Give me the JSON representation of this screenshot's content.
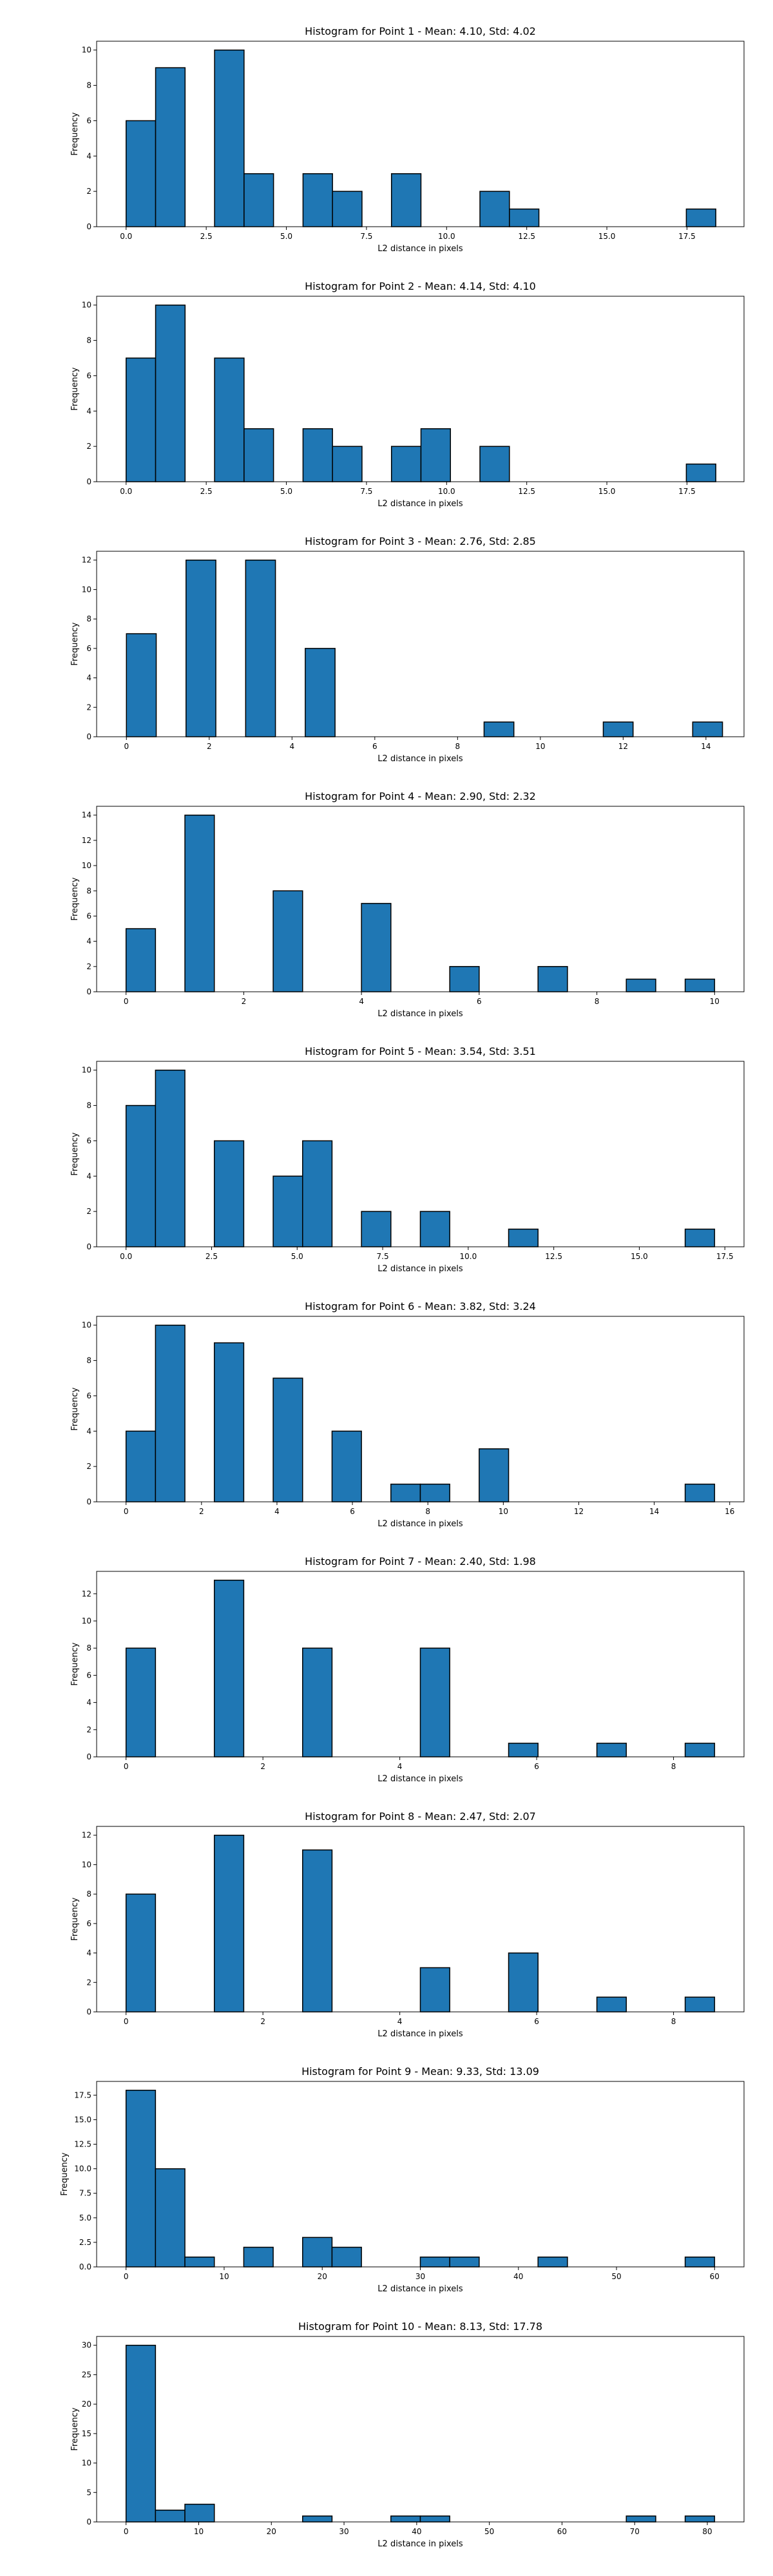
{
  "chart_data": [
    {
      "type": "bar",
      "title": "Histogram for Point 1 - Mean: 4.10, Std: 4.02",
      "xlabel": "L2 distance in pixels",
      "ylabel": "Frequency",
      "xlim": [
        -0.92,
        19.28
      ],
      "ylim": [
        0,
        10.5
      ],
      "xticks": [
        0.0,
        2.5,
        5.0,
        7.5,
        10.0,
        12.5,
        15.0,
        17.5
      ],
      "xtick_labels": [
        "0.0",
        "2.5",
        "5.0",
        "7.5",
        "10.0",
        "12.5",
        "15.0",
        "17.5"
      ],
      "yticks": [
        0,
        2,
        4,
        6,
        8,
        10
      ],
      "ytick_labels": [
        "0",
        "2",
        "4",
        "6",
        "8",
        "10"
      ],
      "bin_edges": [
        0.0,
        0.92,
        1.84,
        2.76,
        3.68,
        4.6,
        5.52,
        6.44,
        7.36,
        8.28,
        9.2,
        10.12,
        11.04,
        11.96,
        12.88,
        13.8,
        14.72,
        15.64,
        16.56,
        17.48,
        18.4
      ],
      "values": [
        6,
        9,
        0,
        10,
        3,
        0,
        3,
        2,
        0,
        3,
        0,
        0,
        2,
        1,
        0,
        0,
        0,
        0,
        0,
        1
      ]
    },
    {
      "type": "bar",
      "title": "Histogram for Point 2 - Mean: 4.14, Std: 4.10",
      "xlabel": "L2 distance in pixels",
      "ylabel": "Frequency",
      "xlim": [
        -0.92,
        19.28
      ],
      "ylim": [
        0,
        10.5
      ],
      "xticks": [
        0.0,
        2.5,
        5.0,
        7.5,
        10.0,
        12.5,
        15.0,
        17.5
      ],
      "xtick_labels": [
        "0.0",
        "2.5",
        "5.0",
        "7.5",
        "10.0",
        "12.5",
        "15.0",
        "17.5"
      ],
      "yticks": [
        0,
        2,
        4,
        6,
        8,
        10
      ],
      "ytick_labels": [
        "0",
        "2",
        "4",
        "6",
        "8",
        "10"
      ],
      "bin_edges": [
        0.0,
        0.92,
        1.84,
        2.76,
        3.68,
        4.6,
        5.52,
        6.44,
        7.36,
        8.28,
        9.2,
        10.12,
        11.04,
        11.96,
        12.88,
        13.8,
        14.72,
        15.64,
        16.56,
        17.48,
        18.4
      ],
      "values": [
        7,
        10,
        0,
        7,
        3,
        0,
        3,
        2,
        0,
        2,
        3,
        0,
        2,
        0,
        0,
        0,
        0,
        0,
        0,
        1
      ]
    },
    {
      "type": "bar",
      "title": "Histogram for Point 3 - Mean: 2.76, Std: 2.85",
      "xlabel": "L2 distance in pixels",
      "ylabel": "Frequency",
      "xlim": [
        -0.72,
        14.92
      ],
      "ylim": [
        0,
        12.6
      ],
      "xticks": [
        0,
        2,
        4,
        6,
        8,
        10,
        12,
        14
      ],
      "xtick_labels": [
        "0",
        "2",
        "4",
        "6",
        "8",
        "10",
        "12",
        "14"
      ],
      "yticks": [
        0,
        2,
        4,
        6,
        8,
        10,
        12
      ],
      "ytick_labels": [
        "0",
        "2",
        "4",
        "6",
        "8",
        "10",
        "12"
      ],
      "bin_edges": [
        0.0,
        0.72,
        1.44,
        2.16,
        2.88,
        3.6,
        4.32,
        5.04,
        5.76,
        6.48,
        7.2,
        7.92,
        8.64,
        9.36,
        10.08,
        10.8,
        11.52,
        12.24,
        12.96,
        13.68,
        14.4
      ],
      "values": [
        7,
        0,
        12,
        0,
        12,
        0,
        6,
        0,
        0,
        0,
        0,
        0,
        1,
        0,
        0,
        0,
        1,
        0,
        0,
        1
      ]
    },
    {
      "type": "bar",
      "title": "Histogram for Point 4 - Mean: 2.90, Std: 2.32",
      "xlabel": "L2 distance in pixels",
      "ylabel": "Frequency",
      "xlim": [
        -0.5,
        10.5
      ],
      "ylim": [
        0,
        14.7
      ],
      "xticks": [
        0,
        2,
        4,
        6,
        8,
        10
      ],
      "xtick_labels": [
        "0",
        "2",
        "4",
        "6",
        "8",
        "10"
      ],
      "yticks": [
        0,
        2,
        4,
        6,
        8,
        10,
        12,
        14
      ],
      "ytick_labels": [
        "0",
        "2",
        "4",
        "6",
        "8",
        "10",
        "12",
        "14"
      ],
      "bin_edges": [
        0.0,
        0.5,
        1.0,
        1.5,
        2.0,
        2.5,
        3.0,
        3.5,
        4.0,
        4.5,
        5.0,
        5.5,
        6.0,
        6.5,
        7.0,
        7.5,
        8.0,
        8.5,
        9.0,
        9.5,
        10.0
      ],
      "values": [
        5,
        0,
        14,
        0,
        0,
        8,
        0,
        0,
        7,
        0,
        0,
        2,
        0,
        0,
        2,
        0,
        0,
        1,
        0,
        1
      ]
    },
    {
      "type": "bar",
      "title": "Histogram for Point 5 - Mean: 3.54, Std: 3.51",
      "xlabel": "L2 distance in pixels",
      "ylabel": "Frequency",
      "xlim": [
        -0.86,
        18.06
      ],
      "ylim": [
        0,
        10.5
      ],
      "xticks": [
        0.0,
        2.5,
        5.0,
        7.5,
        10.0,
        12.5,
        15.0,
        17.5
      ],
      "xtick_labels": [
        "0.0",
        "2.5",
        "5.0",
        "7.5",
        "10.0",
        "12.5",
        "15.0",
        "17.5"
      ],
      "yticks": [
        0,
        2,
        4,
        6,
        8,
        10
      ],
      "ytick_labels": [
        "0",
        "2",
        "4",
        "6",
        "8",
        "10"
      ],
      "bin_edges": [
        0.0,
        0.86,
        1.72,
        2.58,
        3.44,
        4.3,
        5.16,
        6.02,
        6.88,
        7.74,
        8.6,
        9.46,
        10.32,
        11.18,
        12.04,
        12.9,
        13.76,
        14.62,
        15.48,
        16.34,
        17.2
      ],
      "values": [
        8,
        10,
        0,
        6,
        0,
        4,
        6,
        0,
        2,
        0,
        2,
        0,
        0,
        1,
        0,
        0,
        0,
        0,
        0,
        1
      ]
    },
    {
      "type": "bar",
      "title": "Histogram for Point 6 - Mean: 3.82, Std: 3.24",
      "xlabel": "L2 distance in pixels",
      "ylabel": "Frequency",
      "xlim": [
        -0.78,
        16.38
      ],
      "ylim": [
        0,
        10.5
      ],
      "xticks": [
        0,
        2,
        4,
        6,
        8,
        10,
        12,
        14,
        16
      ],
      "xtick_labels": [
        "0",
        "2",
        "4",
        "6",
        "8",
        "10",
        "12",
        "14",
        "16"
      ],
      "yticks": [
        0,
        2,
        4,
        6,
        8,
        10
      ],
      "ytick_labels": [
        "0",
        "2",
        "4",
        "6",
        "8",
        "10"
      ],
      "bin_edges": [
        0.0,
        0.78,
        1.56,
        2.34,
        3.12,
        3.9,
        4.68,
        5.46,
        6.24,
        7.02,
        7.8,
        8.58,
        9.36,
        10.14,
        10.92,
        11.7,
        12.48,
        13.26,
        14.04,
        14.82,
        15.6
      ],
      "values": [
        4,
        10,
        0,
        9,
        0,
        7,
        0,
        4,
        0,
        1,
        1,
        0,
        3,
        0,
        0,
        0,
        0,
        0,
        0,
        1
      ]
    },
    {
      "type": "bar",
      "title": "Histogram for Point 7 - Mean: 2.40, Std: 1.98",
      "xlabel": "L2 distance in pixels",
      "ylabel": "Frequency",
      "xlim": [
        -0.43,
        9.03
      ],
      "ylim": [
        0,
        13.65
      ],
      "xticks": [
        0,
        2,
        4,
        6,
        8
      ],
      "xtick_labels": [
        "0",
        "2",
        "4",
        "6",
        "8"
      ],
      "yticks": [
        0,
        2,
        4,
        6,
        8,
        10,
        12
      ],
      "ytick_labels": [
        "0",
        "2",
        "4",
        "6",
        "8",
        "10",
        "12"
      ],
      "bin_edges": [
        0.0,
        0.43,
        0.86,
        1.29,
        1.72,
        2.15,
        2.58,
        3.01,
        3.44,
        3.87,
        4.3,
        4.73,
        5.16,
        5.59,
        6.02,
        6.45,
        6.88,
        7.31,
        7.74,
        8.17,
        8.6
      ],
      "values": [
        8,
        0,
        0,
        13,
        0,
        0,
        8,
        0,
        0,
        0,
        8,
        0,
        0,
        1,
        0,
        0,
        1,
        0,
        0,
        1
      ]
    },
    {
      "type": "bar",
      "title": "Histogram for Point 8 - Mean: 2.47, Std: 2.07",
      "xlabel": "L2 distance in pixels",
      "ylabel": "Frequency",
      "xlim": [
        -0.43,
        9.03
      ],
      "ylim": [
        0,
        12.6
      ],
      "xticks": [
        0,
        2,
        4,
        6,
        8
      ],
      "xtick_labels": [
        "0",
        "2",
        "4",
        "6",
        "8"
      ],
      "yticks": [
        0,
        2,
        4,
        6,
        8,
        10,
        12
      ],
      "ytick_labels": [
        "0",
        "2",
        "4",
        "6",
        "8",
        "10",
        "12"
      ],
      "bin_edges": [
        0.0,
        0.43,
        0.86,
        1.29,
        1.72,
        2.15,
        2.58,
        3.01,
        3.44,
        3.87,
        4.3,
        4.73,
        5.16,
        5.59,
        6.02,
        6.45,
        6.88,
        7.31,
        7.74,
        8.17,
        8.6
      ],
      "values": [
        8,
        0,
        0,
        12,
        0,
        0,
        11,
        0,
        0,
        0,
        3,
        0,
        0,
        4,
        0,
        0,
        1,
        0,
        0,
        1
      ]
    },
    {
      "type": "bar",
      "title": "Histogram for Point 9 - Mean: 9.33, Std: 13.09",
      "xlabel": "L2 distance in pixels",
      "ylabel": "Frequency",
      "xlim": [
        -3.0,
        63.0
      ],
      "ylim": [
        0,
        18.9
      ],
      "xticks": [
        0,
        10,
        20,
        30,
        40,
        50,
        60
      ],
      "xtick_labels": [
        "0",
        "10",
        "20",
        "30",
        "40",
        "50",
        "60"
      ],
      "yticks": [
        0.0,
        2.5,
        5.0,
        7.5,
        10.0,
        12.5,
        15.0,
        17.5
      ],
      "ytick_labels": [
        "0.0",
        "2.5",
        "5.0",
        "7.5",
        "10.0",
        "12.5",
        "15.0",
        "17.5"
      ],
      "bin_edges": [
        0,
        3,
        6,
        9,
        12,
        15,
        18,
        21,
        24,
        27,
        30,
        33,
        36,
        39,
        42,
        45,
        48,
        51,
        54,
        57,
        60
      ],
      "values": [
        18,
        10,
        1,
        0,
        2,
        0,
        3,
        2,
        0,
        0,
        1,
        1,
        0,
        0,
        1,
        0,
        0,
        0,
        0,
        1
      ]
    },
    {
      "type": "bar",
      "title": "Histogram for Point 10 - Mean: 8.13, Std: 17.78",
      "xlabel": "L2 distance in pixels",
      "ylabel": "Frequency",
      "xlim": [
        -4.05,
        85.05
      ],
      "ylim": [
        0,
        31.5
      ],
      "xticks": [
        0,
        10,
        20,
        30,
        40,
        50,
        60,
        70,
        80
      ],
      "xtick_labels": [
        "0",
        "10",
        "20",
        "30",
        "40",
        "50",
        "60",
        "70",
        "80"
      ],
      "yticks": [
        0,
        5,
        10,
        15,
        20,
        25,
        30
      ],
      "ytick_labels": [
        "0",
        "5",
        "10",
        "15",
        "20",
        "25",
        "30"
      ],
      "bin_edges": [
        0.0,
        4.05,
        8.1,
        12.15,
        16.2,
        20.25,
        24.3,
        28.35,
        32.4,
        36.45,
        40.5,
        44.55,
        48.6,
        52.65,
        56.7,
        60.75,
        64.8,
        68.85,
        72.9,
        76.95,
        81.0
      ],
      "values": [
        30,
        2,
        3,
        0,
        0,
        0,
        1,
        0,
        0,
        1,
        1,
        0,
        0,
        0,
        0,
        0,
        0,
        1,
        0,
        1
      ]
    }
  ]
}
